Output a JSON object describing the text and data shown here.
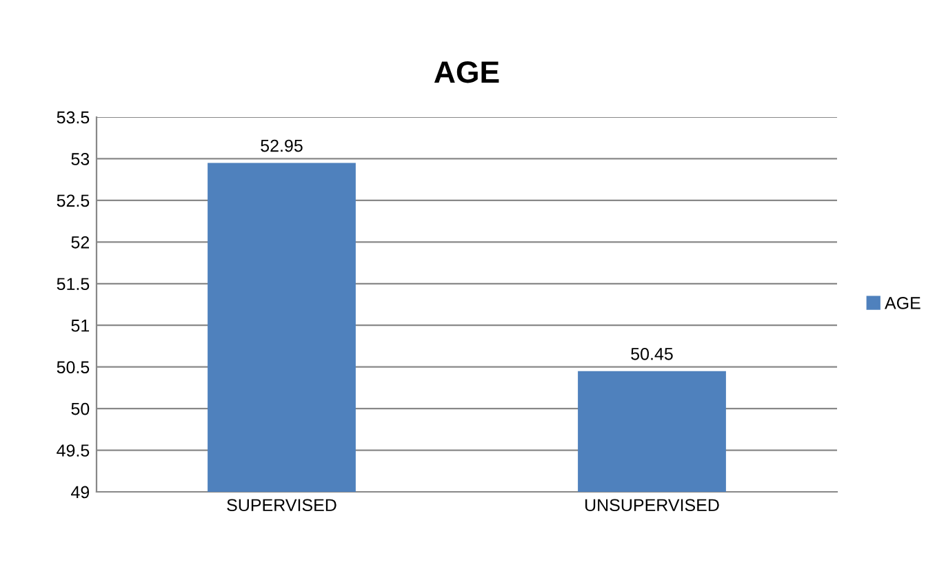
{
  "chart_data": {
    "type": "bar",
    "title": "AGE",
    "categories": [
      "SUPERVISED",
      "UNSUPERVISED"
    ],
    "series": [
      {
        "name": "AGE",
        "color": "#4f81bd",
        "values": [
          52.95,
          50.45
        ]
      }
    ],
    "ylim": [
      49,
      53.5
    ],
    "yticks": [
      49,
      49.5,
      50,
      50.5,
      51,
      51.5,
      52,
      52.5,
      53,
      53.5
    ],
    "grid": "y",
    "legend": "right",
    "data_labels": true
  }
}
